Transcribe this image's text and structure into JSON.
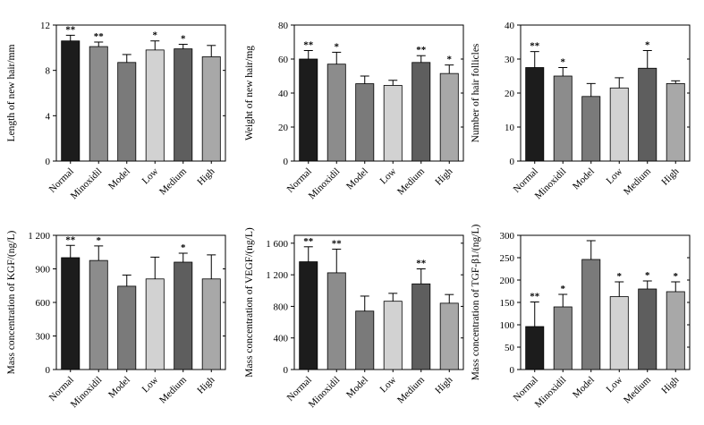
{
  "colors": {
    "Normal": "#1c1c1c",
    "Minoxidil": "#8c8c8c",
    "Model": "#7a7a7a",
    "Low": "#d2d2d2",
    "Medium": "#5e5e5e",
    "High": "#a8a8a8"
  },
  "chart_data": [
    {
      "type": "bar",
      "ylabel": "Length of new hair/mm",
      "categories": [
        "Normal",
        "Minoxidil",
        "Model",
        "Low",
        "Medium",
        "High"
      ],
      "values": [
        10.6,
        10.1,
        8.7,
        9.8,
        9.9,
        9.2
      ],
      "errors": [
        0.5,
        0.4,
        0.7,
        0.8,
        0.4,
        1.0
      ],
      "significance": [
        "**",
        "**",
        "",
        "*",
        "*",
        ""
      ],
      "ylim": [
        0,
        12
      ],
      "yticks": [
        "0",
        "4",
        "8",
        "12"
      ],
      "ytick_values": [
        0,
        4,
        8,
        12
      ]
    },
    {
      "type": "bar",
      "ylabel": "Weight of new hair/mg",
      "categories": [
        "Normal",
        "Minoxidil",
        "Model",
        "Low",
        "Medium",
        "High"
      ],
      "values": [
        60,
        57,
        45.5,
        44.5,
        58,
        51.5
      ],
      "errors": [
        5,
        7,
        4.5,
        3,
        4,
        5
      ],
      "significance": [
        "**",
        "*",
        "",
        "",
        "**",
        "*"
      ],
      "ylim": [
        0,
        80
      ],
      "yticks": [
        "0",
        "20",
        "40",
        "60",
        "80"
      ],
      "ytick_values": [
        0,
        20,
        40,
        60,
        80
      ]
    },
    {
      "type": "bar",
      "ylabel": "Number of hair follicles",
      "categories": [
        "Normal",
        "Minoxidil",
        "Model",
        "Low",
        "Medium",
        "High"
      ],
      "values": [
        27.5,
        25,
        19,
        21.5,
        27.3,
        22.8
      ],
      "errors": [
        4.7,
        2.5,
        3.8,
        3,
        5.2,
        0.8
      ],
      "significance": [
        "**",
        "*",
        "",
        "",
        "*",
        ""
      ],
      "ylim": [
        0,
        40
      ],
      "yticks": [
        "0",
        "10",
        "20",
        "30",
        "40"
      ],
      "ytick_values": [
        0,
        10,
        20,
        30,
        40
      ]
    },
    {
      "type": "bar",
      "ylabel": "Mass concentration of KGF/(ng/L)",
      "categories": [
        "Normal",
        "Minoxidil",
        "Model",
        "Low",
        "Medium",
        "High"
      ],
      "values": [
        1000,
        975,
        745,
        810,
        960,
        810
      ],
      "errors": [
        110,
        130,
        100,
        195,
        80,
        215
      ],
      "significance": [
        "**",
        "*",
        "",
        "",
        "*",
        ""
      ],
      "ylim": [
        0,
        1200
      ],
      "yticks": [
        "0",
        "300",
        "600",
        "900",
        "1 200"
      ],
      "ytick_values": [
        0,
        300,
        600,
        900,
        1200
      ]
    },
    {
      "type": "bar",
      "ylabel": "Mass concentration of VEGF/(ng/L)",
      "categories": [
        "Normal",
        "Minoxidil",
        "Model",
        "Low",
        "Medium",
        "High"
      ],
      "values": [
        1365,
        1225,
        740,
        865,
        1085,
        840
      ],
      "errors": [
        190,
        300,
        190,
        100,
        190,
        110
      ],
      "significance": [
        "**",
        "**",
        "",
        "",
        "**",
        ""
      ],
      "ylim": [
        0,
        1700
      ],
      "yticks": [
        "0",
        "400",
        "800",
        "1 200",
        "1 600"
      ],
      "ytick_values": [
        0,
        400,
        800,
        1200,
        1600
      ]
    },
    {
      "type": "bar",
      "ylabel": "Mass concentration of TGF-β1/(ng/L)",
      "categories": [
        "Normal",
        "Minoxidil",
        "Model",
        "Low",
        "Medium",
        "High"
      ],
      "values": [
        96,
        140,
        246,
        163,
        180,
        174
      ],
      "errors": [
        55,
        28,
        42,
        33,
        18,
        22
      ],
      "significance": [
        "**",
        "*",
        "",
        "*",
        "*",
        "*"
      ],
      "ylim": [
        0,
        300
      ],
      "yticks": [
        "0",
        "50",
        "100",
        "150",
        "200",
        "250",
        "300"
      ],
      "ytick_values": [
        0,
        50,
        100,
        150,
        200,
        250,
        300
      ]
    }
  ]
}
